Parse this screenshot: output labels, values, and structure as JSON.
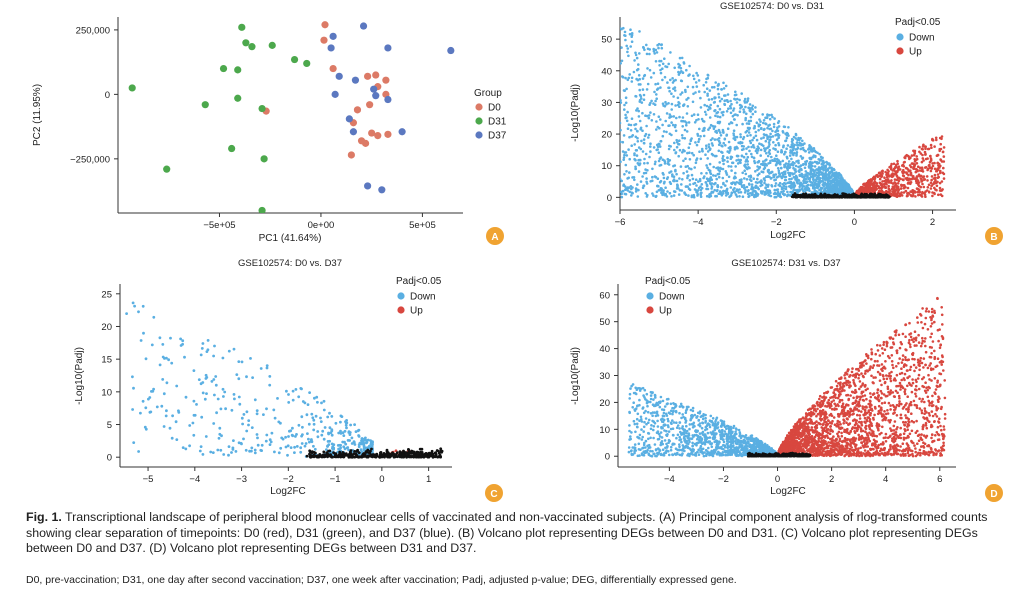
{
  "caption": {
    "figure_label": "Fig. 1.",
    "text": "Transcriptional landscape of peripheral blood mononuclear cells of vaccinated and non-vaccinated subjects. (A) Principal component analysis of rlog-transformed counts showing clear separation of timepoints: D0 (red), D31 (green), and D37 (blue). (B) Volcano plot representing DEGs between D0 and D31. (C) Volcano plot representing DEGs between D0 and D37. (D) Volcano plot representing DEGs between D31 and D37.",
    "abbreviations": "D0, pre-vaccination; D31, one day after second vaccination; D37, one week after vaccination; Padj, adjusted p-value; DEG, differentially expressed gene."
  },
  "colors": {
    "D0": "#dc7a66",
    "D31": "#4ca84c",
    "D37": "#5b78c0",
    "Down": "#5aafe2",
    "Up": "#d8473f",
    "ns": "#111111",
    "badge": "#f0a331"
  },
  "chart_data": [
    {
      "panel": "A",
      "type": "scatter",
      "title": "",
      "xlabel": "PC1 (41.64%)",
      "ylabel": "PC2 (11.95%)",
      "xlim": [
        -1000000,
        700000
      ],
      "ylim": [
        -460000,
        300000
      ],
      "x_ticks": [
        {
          "v": -500000,
          "label": "−5e+05"
        },
        {
          "v": 0,
          "label": "0e+00"
        },
        {
          "v": 500000,
          "label": "5e+05"
        }
      ],
      "y_ticks": [
        {
          "v": 250000,
          "label": "250,000"
        },
        {
          "v": 0,
          "label": "0"
        },
        {
          "v": -250000,
          "label": "−250,000"
        }
      ],
      "legend": {
        "title": "Group",
        "position": "right",
        "entries": [
          "D0",
          "D31",
          "D37"
        ]
      },
      "series": [
        {
          "name": "D0",
          "color_key": "D0",
          "points": [
            [
              20000,
              270000
            ],
            [
              15000,
              210000
            ],
            [
              60000,
              100000
            ],
            [
              230000,
              70000
            ],
            [
              270000,
              75000
            ],
            [
              320000,
              55000
            ],
            [
              280000,
              30000
            ],
            [
              320000,
              0
            ],
            [
              240000,
              -40000
            ],
            [
              180000,
              -60000
            ],
            [
              160000,
              -110000
            ],
            [
              250000,
              -150000
            ],
            [
              280000,
              -160000
            ],
            [
              200000,
              -180000
            ],
            [
              220000,
              -190000
            ],
            [
              330000,
              -155000
            ],
            [
              150000,
              -235000
            ],
            [
              -270000,
              -65000
            ]
          ]
        },
        {
          "name": "D31",
          "color_key": "D31",
          "points": [
            [
              -390000,
              260000
            ],
            [
              -370000,
              200000
            ],
            [
              -340000,
              185000
            ],
            [
              -240000,
              190000
            ],
            [
              -130000,
              135000
            ],
            [
              -70000,
              120000
            ],
            [
              -480000,
              100000
            ],
            [
              -410000,
              95000
            ],
            [
              -930000,
              25000
            ],
            [
              -570000,
              -40000
            ],
            [
              -410000,
              -15000
            ],
            [
              -290000,
              -55000
            ],
            [
              -440000,
              -210000
            ],
            [
              -280000,
              -250000
            ],
            [
              -760000,
              -290000
            ],
            [
              -290000,
              -450000
            ]
          ]
        },
        {
          "name": "D37",
          "color_key": "D37",
          "points": [
            [
              210000,
              265000
            ],
            [
              60000,
              225000
            ],
            [
              50000,
              180000
            ],
            [
              330000,
              180000
            ],
            [
              640000,
              170000
            ],
            [
              170000,
              55000
            ],
            [
              90000,
              70000
            ],
            [
              260000,
              20000
            ],
            [
              330000,
              -20000
            ],
            [
              70000,
              0
            ],
            [
              140000,
              -95000
            ],
            [
              160000,
              -145000
            ],
            [
              400000,
              -145000
            ],
            [
              270000,
              -5000
            ],
            [
              230000,
              -355000
            ],
            [
              300000,
              -370000
            ]
          ]
        }
      ]
    },
    {
      "panel": "B",
      "type": "scatter",
      "title": "GSE102574: D0 vs. D31",
      "xlabel": "Log2FC",
      "ylabel": "-Log10(Padj)",
      "xlim": [
        -6,
        2.6
      ],
      "ylim": [
        -4,
        57
      ],
      "x_ticks": [
        -6,
        -4,
        -2,
        0,
        2
      ],
      "y_ticks": [
        0,
        10,
        20,
        30,
        40,
        50
      ],
      "legend": {
        "title": "Padj<0.05",
        "position": "top-right",
        "entries": [
          "Down",
          "Up"
        ]
      },
      "series": [
        {
          "name": "Down",
          "color_key": "Down",
          "approx_points": 2600,
          "x_range": [
            -6,
            -0.05
          ],
          "y_max": 56
        },
        {
          "name": "Up",
          "color_key": "Up",
          "approx_points": 900,
          "x_range": [
            0.05,
            2.3
          ],
          "y_max": 20
        },
        {
          "name": "ns",
          "color_key": "ns",
          "approx_points": 500,
          "x_range": [
            -1.6,
            0.9
          ],
          "y_max": 1.3
        }
      ]
    },
    {
      "panel": "C",
      "type": "scatter",
      "title": "GSE102574: D0 vs. D37",
      "xlabel": "Log2FC",
      "ylabel": "-Log10(Padj)",
      "xlim": [
        -5.6,
        1.5
      ],
      "ylim": [
        -1.5,
        26.5
      ],
      "x_ticks": [
        -5,
        -4,
        -3,
        -2,
        -1,
        0,
        1
      ],
      "y_ticks": [
        0,
        5,
        10,
        15,
        20,
        25
      ],
      "legend": {
        "title": "Padj<0.05",
        "position": "top-right",
        "entries": [
          "Down",
          "Up"
        ]
      },
      "series": [
        {
          "name": "Down",
          "color_key": "Down",
          "approx_points": 450,
          "x_range": [
            -5.5,
            -0.2
          ],
          "y_max": 25
        },
        {
          "name": "Up",
          "color_key": "Up",
          "approx_points": 12,
          "x_range": [
            0.2,
            1.1
          ],
          "y_max": 1.6
        },
        {
          "name": "ns",
          "color_key": "ns",
          "approx_points": 400,
          "x_range": [
            -1.6,
            1.3
          ],
          "y_max": 1.3
        }
      ]
    },
    {
      "panel": "D",
      "type": "scatter",
      "title": "GSE102574: D31 vs. D37",
      "xlabel": "Log2FC",
      "ylabel": "-Log10(Padj)",
      "xlim": [
        -5.9,
        6.6
      ],
      "ylim": [
        -4,
        64
      ],
      "x_ticks": [
        -4,
        -2,
        0,
        2,
        4,
        6
      ],
      "y_ticks": [
        0,
        10,
        20,
        30,
        40,
        50,
        60
      ],
      "legend": {
        "title": "Padj<0.05",
        "position": "top-left",
        "entries": [
          "Down",
          "Up"
        ]
      },
      "series": [
        {
          "name": "Down",
          "color_key": "Down",
          "approx_points": 1500,
          "x_range": [
            -5.5,
            -0.05
          ],
          "y_max": 27
        },
        {
          "name": "Up",
          "color_key": "Up",
          "approx_points": 2600,
          "x_range": [
            0.05,
            6.2
          ],
          "y_max": 61
        },
        {
          "name": "ns",
          "color_key": "ns",
          "approx_points": 400,
          "x_range": [
            -1.1,
            1.2
          ],
          "y_max": 1.3
        }
      ]
    }
  ]
}
